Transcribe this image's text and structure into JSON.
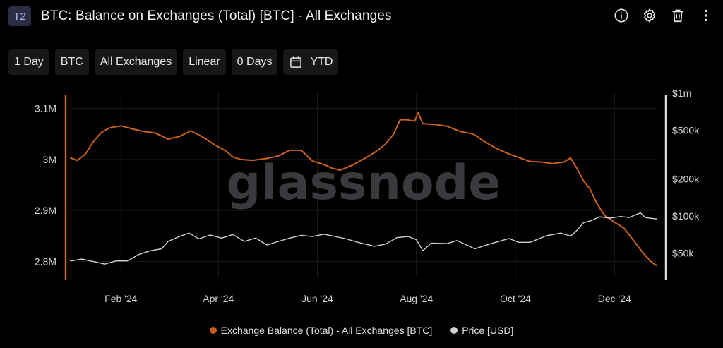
{
  "header": {
    "tier": "T2",
    "title": "BTC: Balance on Exchanges (Total) [BTC] - All Exchanges",
    "icons": [
      "info-icon",
      "gear-icon",
      "trash-icon",
      "more-vertical-icon"
    ]
  },
  "toolbar": {
    "resolution": "1 Day",
    "asset": "BTC",
    "exchange": "All Exchanges",
    "scale": "Linear",
    "moving_average": "0 Days",
    "range": "YTD"
  },
  "watermark": "glassnode",
  "colors": {
    "balance": "#c9601a",
    "price": "#d0d0d0",
    "background": "#000000"
  },
  "chart_data": {
    "type": "line",
    "x_ticks": [
      "Feb '24",
      "Apr '24",
      "Jun '24",
      "Aug '24",
      "Oct '24",
      "Dec '24"
    ],
    "x_tick_dates": [
      "2024-02-01",
      "2024-04-01",
      "2024-06-01",
      "2024-08-01",
      "2024-10-01",
      "2024-12-01"
    ],
    "x_range": [
      "2024-01-01",
      "2024-12-27"
    ],
    "left_axis": {
      "ticks": [
        "3.1M",
        "3M",
        "2.9M",
        "2.8M"
      ],
      "tick_values": [
        3100000,
        3000000,
        2900000,
        2800000
      ],
      "range": [
        2770000,
        3130000
      ],
      "scale": "linear"
    },
    "right_axis": {
      "ticks": [
        "$1m",
        "$500k",
        "$200k",
        "$100k",
        "$50k"
      ],
      "tick_values": [
        1000000,
        500000,
        200000,
        100000,
        50000
      ],
      "range": [
        32000,
        1000000
      ],
      "scale": "log"
    },
    "grid": true,
    "legend_position": "bottom-center",
    "series": [
      {
        "name": "Exchange Balance (Total) - All Exchanges [BTC]",
        "axis": "left",
        "color": "#c9601a",
        "points": [
          [
            "2024-01-01",
            3003000
          ],
          [
            "2024-01-05",
            2998000
          ],
          [
            "2024-01-10",
            3010000
          ],
          [
            "2024-01-15",
            3035000
          ],
          [
            "2024-01-20",
            3053000
          ],
          [
            "2024-01-25",
            3062000
          ],
          [
            "2024-02-01",
            3066000
          ],
          [
            "2024-02-08",
            3060000
          ],
          [
            "2024-02-15",
            3055000
          ],
          [
            "2024-02-22",
            3052000
          ],
          [
            "2024-03-01",
            3040000
          ],
          [
            "2024-03-08",
            3045000
          ],
          [
            "2024-03-15",
            3056000
          ],
          [
            "2024-03-22",
            3045000
          ],
          [
            "2024-03-29",
            3030000
          ],
          [
            "2024-04-05",
            3018000
          ],
          [
            "2024-04-10",
            3005000
          ],
          [
            "2024-04-15",
            3000000
          ],
          [
            "2024-04-22",
            2998000
          ],
          [
            "2024-05-01",
            3002000
          ],
          [
            "2024-05-08",
            3007000
          ],
          [
            "2024-05-15",
            3018000
          ],
          [
            "2024-05-22",
            3018000
          ],
          [
            "2024-05-29",
            2997000
          ],
          [
            "2024-06-05",
            2990000
          ],
          [
            "2024-06-10",
            2983000
          ],
          [
            "2024-06-15",
            2979000
          ],
          [
            "2024-06-22",
            2988000
          ],
          [
            "2024-06-29",
            3000000
          ],
          [
            "2024-07-06",
            3013000
          ],
          [
            "2024-07-13",
            3030000
          ],
          [
            "2024-07-18",
            3050000
          ],
          [
            "2024-07-22",
            3078000
          ],
          [
            "2024-07-26",
            3078000
          ],
          [
            "2024-07-31",
            3075000
          ],
          [
            "2024-08-02",
            3092000
          ],
          [
            "2024-08-05",
            3070000
          ],
          [
            "2024-08-12",
            3069000
          ],
          [
            "2024-08-20",
            3065000
          ],
          [
            "2024-08-28",
            3055000
          ],
          [
            "2024-09-05",
            3050000
          ],
          [
            "2024-09-12",
            3035000
          ],
          [
            "2024-09-19",
            3022000
          ],
          [
            "2024-09-26",
            3012000
          ],
          [
            "2024-10-03",
            3004000
          ],
          [
            "2024-10-10",
            2996000
          ],
          [
            "2024-10-17",
            2995000
          ],
          [
            "2024-10-24",
            2992000
          ],
          [
            "2024-10-31",
            2995000
          ],
          [
            "2024-11-04",
            3003000
          ],
          [
            "2024-11-08",
            2982000
          ],
          [
            "2024-11-12",
            2958000
          ],
          [
            "2024-11-16",
            2942000
          ],
          [
            "2024-11-20",
            2915000
          ],
          [
            "2024-11-25",
            2890000
          ],
          [
            "2024-12-01",
            2877000
          ],
          [
            "2024-12-07",
            2865000
          ],
          [
            "2024-12-13",
            2840000
          ],
          [
            "2024-12-19",
            2815000
          ],
          [
            "2024-12-24",
            2798000
          ],
          [
            "2024-12-27",
            2792000
          ]
        ]
      },
      {
        "name": "Price [USD]",
        "axis": "right",
        "color": "#d0d0d0",
        "points": [
          [
            "2024-01-01",
            43000
          ],
          [
            "2024-01-08",
            44500
          ],
          [
            "2024-01-15",
            42500
          ],
          [
            "2024-01-22",
            40500
          ],
          [
            "2024-01-29",
            43000
          ],
          [
            "2024-02-05",
            43000
          ],
          [
            "2024-02-12",
            48500
          ],
          [
            "2024-02-19",
            52000
          ],
          [
            "2024-02-26",
            54000
          ],
          [
            "2024-03-01",
            62000
          ],
          [
            "2024-03-08",
            68000
          ],
          [
            "2024-03-14",
            72500
          ],
          [
            "2024-03-20",
            65000
          ],
          [
            "2024-03-27",
            70000
          ],
          [
            "2024-04-03",
            66000
          ],
          [
            "2024-04-10",
            70500
          ],
          [
            "2024-04-17",
            62000
          ],
          [
            "2024-04-24",
            66000
          ],
          [
            "2024-05-01",
            58000
          ],
          [
            "2024-05-08",
            62000
          ],
          [
            "2024-05-15",
            66000
          ],
          [
            "2024-05-22",
            69500
          ],
          [
            "2024-05-29",
            68000
          ],
          [
            "2024-06-05",
            71000
          ],
          [
            "2024-06-12",
            68000
          ],
          [
            "2024-06-19",
            65000
          ],
          [
            "2024-06-26",
            61000
          ],
          [
            "2024-07-03",
            58000
          ],
          [
            "2024-07-06",
            56500
          ],
          [
            "2024-07-13",
            59000
          ],
          [
            "2024-07-20",
            66500
          ],
          [
            "2024-07-27",
            68000
          ],
          [
            "2024-08-01",
            64000
          ],
          [
            "2024-08-05",
            52000
          ],
          [
            "2024-08-10",
            60000
          ],
          [
            "2024-08-20",
            59500
          ],
          [
            "2024-08-26",
            63000
          ],
          [
            "2024-09-06",
            54000
          ],
          [
            "2024-09-15",
            59000
          ],
          [
            "2024-09-27",
            65500
          ],
          [
            "2024-10-03",
            61000
          ],
          [
            "2024-10-10",
            61000
          ],
          [
            "2024-10-20",
            69000
          ],
          [
            "2024-10-29",
            72500
          ],
          [
            "2024-11-04",
            68500
          ],
          [
            "2024-11-08",
            76500
          ],
          [
            "2024-11-12",
            88000
          ],
          [
            "2024-11-16",
            91000
          ],
          [
            "2024-11-22",
            98500
          ],
          [
            "2024-11-28",
            96000
          ],
          [
            "2024-12-05",
            99000
          ],
          [
            "2024-12-10",
            97000
          ],
          [
            "2024-12-17",
            106000
          ],
          [
            "2024-12-20",
            97000
          ],
          [
            "2024-12-27",
            94500
          ]
        ]
      }
    ]
  },
  "legend": {
    "balance_label": "Exchange Balance (Total) - All Exchanges [BTC]",
    "price_label": "Price [USD]"
  }
}
